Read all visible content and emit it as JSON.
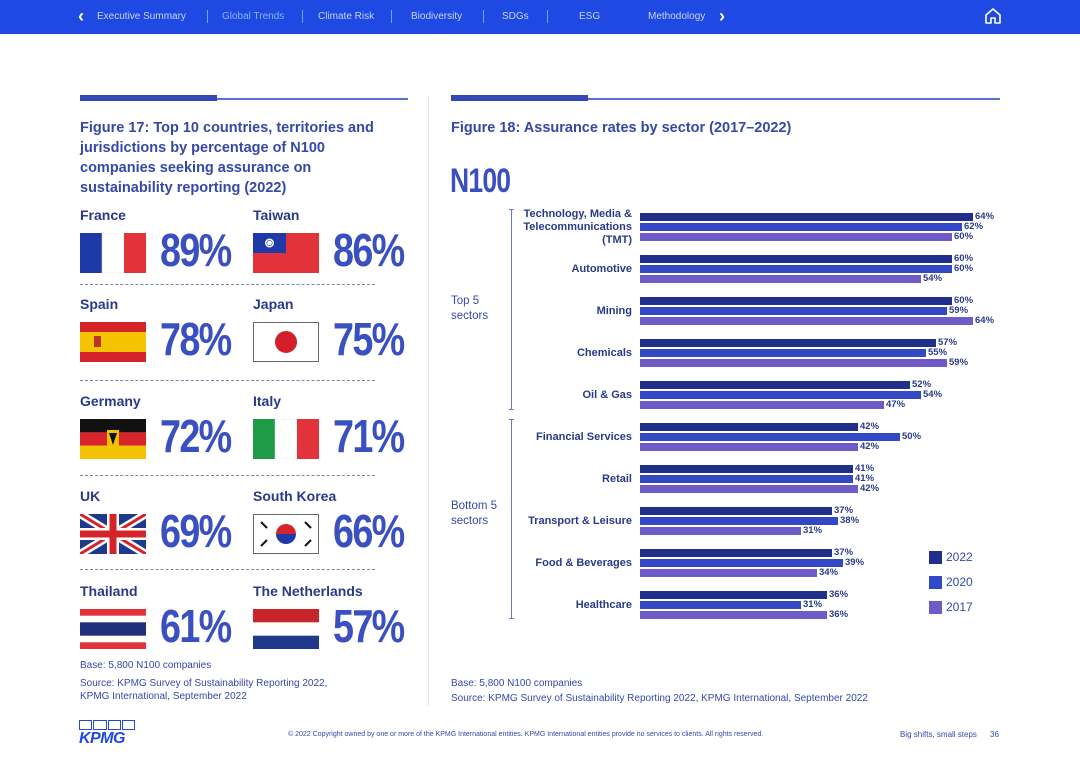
{
  "nav": {
    "items": [
      {
        "label": "Executive Summary",
        "active": false
      },
      {
        "label": "Global Trends",
        "active": true
      },
      {
        "label": "Climate Risk",
        "active": false
      },
      {
        "label": "Biodiversity",
        "active": false
      },
      {
        "label": "SDGs",
        "active": false
      },
      {
        "label": "ESG",
        "active": false
      },
      {
        "label": "Methodology",
        "active": false
      }
    ],
    "prev_icon": "chevron-left-icon",
    "next_icon": "chevron-right-icon",
    "home_icon": "home-icon",
    "color": "#1e49e2"
  },
  "left": {
    "title": "Figure 17: Top 10 countries, territories and jurisdictions by percentage of N100 companies seeking assurance on sustainability reporting (2022)",
    "countries": [
      {
        "name": "France",
        "value": "89%",
        "flag": "france-flag"
      },
      {
        "name": "Taiwan",
        "value": "86%",
        "flag": "taiwan-flag"
      },
      {
        "name": "Spain",
        "value": "78%",
        "flag": "spain-flag"
      },
      {
        "name": "Japan",
        "value": "75%",
        "flag": "japan-flag"
      },
      {
        "name": "Germany",
        "value": "72%",
        "flag": "germany-flag"
      },
      {
        "name": "Italy",
        "value": "71%",
        "flag": "italy-flag"
      },
      {
        "name": "UK",
        "value": "69%",
        "flag": "uk-flag"
      },
      {
        "name": "South Korea",
        "value": "66%",
        "flag": "south-korea-flag"
      },
      {
        "name": "Thailand",
        "value": "61%",
        "flag": "thailand-flag"
      },
      {
        "name": "The Netherlands",
        "value": "57%",
        "flag": "netherlands-flag"
      }
    ],
    "base": "Base: 5,800 N100 companies",
    "source_line1": "Source: KPMG Survey of Sustainability Reporting 2022,",
    "source_line2": "KPMG International, September 2022"
  },
  "right": {
    "title": "Figure 18: Assurance rates by sector (2017–2022)",
    "subtitle": "N100",
    "group_top_line1": "Top 5",
    "group_top_line2": "sectors",
    "group_bottom_line1": "Bottom 5",
    "group_bottom_line2": "sectors",
    "base": "Base: 5,800 N100 companies",
    "source": "Source: KPMG Survey of Sustainability Reporting 2022, KPMG International, September 2022"
  },
  "chart_data": {
    "type": "bar",
    "orientation": "horizontal",
    "title": "Figure 18: Assurance rates by sector (2017–2022)",
    "subtitle": "N100",
    "categories": [
      "Technology, Media & Telecommunications (TMT)",
      "Automotive",
      "Mining",
      "Chemicals",
      "Oil & Gas",
      "Financial Services",
      "Retail",
      "Transport & Leisure",
      "Food & Beverages",
      "Healthcare"
    ],
    "category_lines": [
      [
        "Technology, Media &",
        "Telecommunications",
        "(TMT)"
      ],
      [
        "Automotive"
      ],
      [
        "Mining"
      ],
      [
        "Chemicals"
      ],
      [
        "Oil & Gas"
      ],
      [
        "Financial Services"
      ],
      [
        "Retail"
      ],
      [
        "Transport & Leisure"
      ],
      [
        "Food & Beverages"
      ],
      [
        "Healthcare"
      ]
    ],
    "series": [
      {
        "name": "2022",
        "color": "#1f2f8a",
        "values": [
          64,
          60,
          60,
          57,
          52,
          42,
          41,
          37,
          37,
          36
        ]
      },
      {
        "name": "2020",
        "color": "#3348c4",
        "values": [
          62,
          60,
          59,
          55,
          54,
          50,
          41,
          38,
          39,
          31
        ]
      },
      {
        "name": "2017",
        "color": "#6e5bc7",
        "values": [
          60,
          54,
          64,
          59,
          47,
          42,
          42,
          31,
          34,
          36
        ]
      }
    ],
    "unit": "%",
    "xlim": [
      0,
      100
    ],
    "legend": "bottom-right",
    "groups": [
      "Top 5 sectors",
      "Bottom 5 sectors"
    ]
  },
  "footer": {
    "logo": "KPMG",
    "copyright": "© 2022 Copyright owned by one or more of the KPMG International entities. KPMG International entities provide no services to clients. All rights reserved.",
    "tagline": "Big shifts, small steps",
    "page": "36"
  }
}
